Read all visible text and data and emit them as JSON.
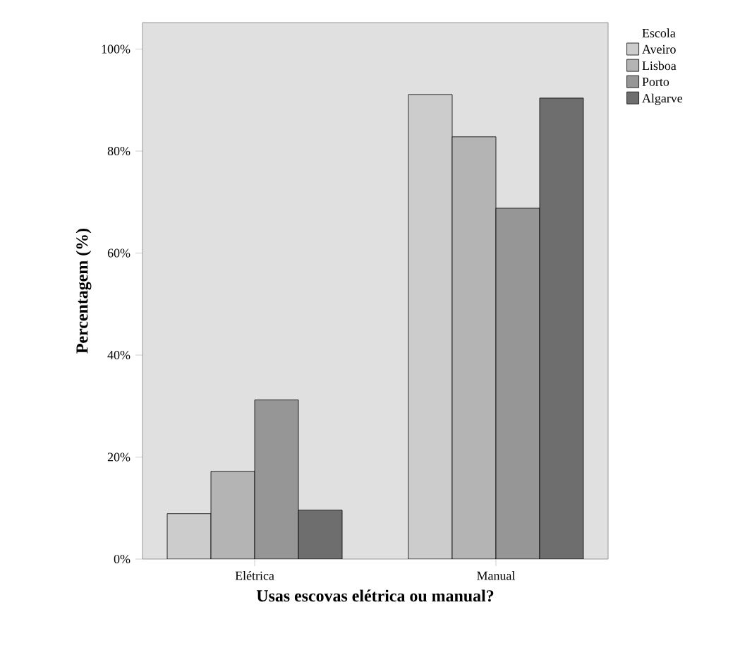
{
  "chart_data": {
    "type": "bar",
    "xlabel": "Usas escovas elétrica ou manual?",
    "ylabel": "Percentagem (%)",
    "legend_title": "Escola",
    "legend": "right",
    "categories": [
      "Elétrica",
      "Manual"
    ],
    "series": [
      {
        "name": "Aveiro",
        "color": "#cccccc",
        "values": [
          8.9,
          91.1
        ]
      },
      {
        "name": "Lisboa",
        "color": "#b4b4b4",
        "values": [
          17.2,
          82.8
        ]
      },
      {
        "name": "Porto",
        "color": "#969696",
        "values": [
          31.2,
          68.8
        ]
      },
      {
        "name": "Algarve",
        "color": "#6e6e6e",
        "values": [
          9.6,
          90.4
        ]
      }
    ],
    "ylim": [
      0,
      105.2
    ],
    "yticks": [
      {
        "value": 0,
        "label": "0%"
      },
      {
        "value": 20,
        "label": "20%"
      },
      {
        "value": 40,
        "label": "40%"
      },
      {
        "value": 60,
        "label": "60%"
      },
      {
        "value": 80,
        "label": "80%"
      },
      {
        "value": 100,
        "label": "100%"
      }
    ]
  }
}
